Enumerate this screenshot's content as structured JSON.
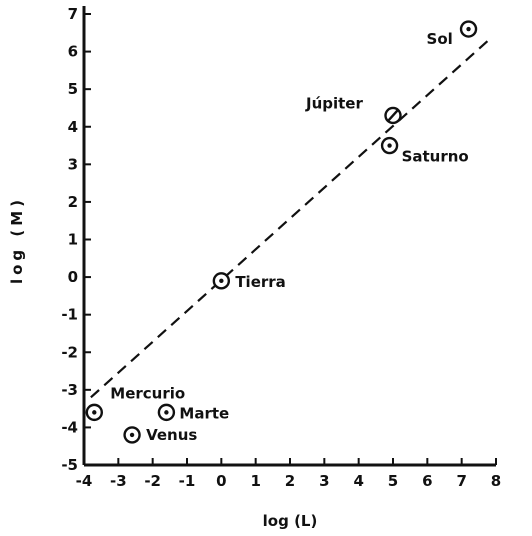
{
  "chart_data": {
    "type": "scatter",
    "title": "",
    "xlabel": "log (L)",
    "ylabel": "log (M)",
    "xlim": [
      -4,
      8
    ],
    "ylim": [
      -5,
      7
    ],
    "xticks": [
      "-4",
      "-3",
      "-2",
      "-1",
      "0",
      "1",
      "2",
      "3",
      "4",
      "5",
      "6",
      "7",
      "8"
    ],
    "yticks": [
      "-5",
      "-4",
      "-3",
      "-2",
      "-1",
      "0",
      "1",
      "2",
      "3",
      "4",
      "5",
      "6",
      "7"
    ],
    "grid": false,
    "points": [
      {
        "label": "Sol",
        "x": 7.2,
        "y": 6.6,
        "marker": "circle-dot"
      },
      {
        "label": "Júpiter",
        "x": 5.0,
        "y": 4.3,
        "marker": "circle-slash"
      },
      {
        "label": "Saturno",
        "x": 4.9,
        "y": 3.5,
        "marker": "circle-dot"
      },
      {
        "label": "Tierra",
        "x": 0.0,
        "y": -0.1,
        "marker": "circle-dot"
      },
      {
        "label": "Mercurio",
        "x": -3.7,
        "y": -3.6,
        "marker": "circle-dot"
      },
      {
        "label": "Marte",
        "x": -1.6,
        "y": -3.6,
        "marker": "circle-dot"
      },
      {
        "label": "Venus",
        "x": -2.6,
        "y": -4.2,
        "marker": "circle-dot"
      }
    ],
    "fit_line": {
      "style": "dashed",
      "from": [
        -3.8,
        -3.2
      ],
      "to": [
        7.9,
        6.4
      ]
    }
  }
}
